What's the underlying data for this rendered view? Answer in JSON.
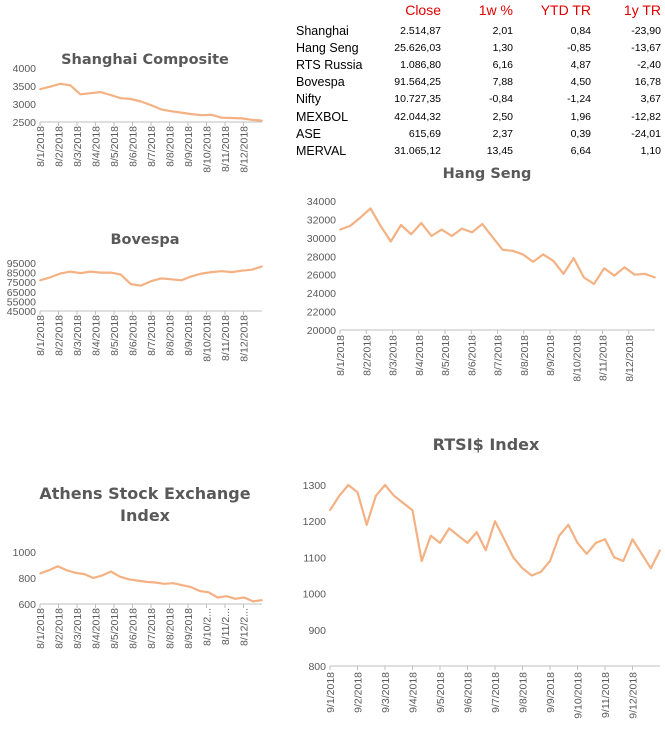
{
  "table": {
    "headers": [
      "",
      "Close",
      "1w %",
      "YTD TR",
      "1y TR"
    ],
    "rows": [
      {
        "name": "Shanghai",
        "close": "2.514,87",
        "w1": "2,01",
        "ytd": "0,84",
        "y1": "-23,90"
      },
      {
        "name": "Hang Seng",
        "close": "25.626,03",
        "w1": "1,30",
        "ytd": "-0,85",
        "y1": "-13,67"
      },
      {
        "name": "RTS Russia",
        "close": "1.086,80",
        "w1": "6,16",
        "ytd": "4,87",
        "y1": "-2,40"
      },
      {
        "name": "Bovespa",
        "close": "91.564,25",
        "w1": "7,88",
        "ytd": "4,50",
        "y1": "16,78"
      },
      {
        "name": "Nifty",
        "close": "10.727,35",
        "w1": "-0,84",
        "ytd": "-1,24",
        "y1": "3,67"
      },
      {
        "name": "MEXBOL",
        "close": "42.044,32",
        "w1": "2,50",
        "ytd": "1,96",
        "y1": "-12,82"
      },
      {
        "name": "ASE",
        "close": "615,69",
        "w1": "2,37",
        "ytd": "0,39",
        "y1": "-24,01"
      },
      {
        "name": "MERVAL",
        "close": "31.065,12",
        "w1": "13,45",
        "ytd": "6,64",
        "y1": "1,10"
      }
    ]
  },
  "line_color": "#f4b183",
  "chart_data": [
    {
      "id": "shanghai",
      "type": "line",
      "title": "Shanghai Composite",
      "yticks": [
        2500,
        3000,
        3500,
        4000
      ],
      "ylim": [
        2500,
        4000
      ],
      "xticks": [
        "8/1/2018",
        "8/2/2018",
        "8/3/2018",
        "8/4/2018",
        "8/5/2018",
        "8/6/2018",
        "8/7/2018",
        "8/8/2018",
        "8/9/2018",
        "8/10/2018",
        "8/11/2018",
        "8/12/2018"
      ],
      "values": [
        3410,
        3480,
        3560,
        3520,
        3270,
        3300,
        3330,
        3250,
        3160,
        3140,
        3070,
        2970,
        2850,
        2800,
        2760,
        2720,
        2690,
        2700,
        2620,
        2610,
        2600,
        2560,
        2540
      ]
    },
    {
      "id": "bovespa",
      "type": "line",
      "title": "Bovespa",
      "yticks": [
        45000,
        55000,
        65000,
        75000,
        85000,
        95000
      ],
      "ylim": [
        45000,
        95000
      ],
      "xticks": [
        "8/1/2018",
        "8/2/2018",
        "8/3/2018",
        "8/4/2018",
        "8/5/2018",
        "8/6/2018",
        "8/7/2018",
        "8/8/2018",
        "8/9/2018",
        "8/10/2018",
        "8/11/2018",
        "8/12/2018"
      ],
      "values": [
        77000,
        80000,
        84000,
        86000,
        84500,
        86000,
        85000,
        85000,
        83000,
        73000,
        71500,
        76000,
        79000,
        78000,
        77000,
        81000,
        84000,
        85500,
        86500,
        85500,
        87000,
        88000,
        91500
      ]
    },
    {
      "id": "hangseng",
      "type": "line",
      "title": "Hang Seng",
      "yticks": [
        20000,
        22000,
        24000,
        26000,
        28000,
        30000,
        32000,
        34000
      ],
      "ylim": [
        20000,
        34000
      ],
      "xticks": [
        "8/1/2018",
        "8/2/2018",
        "8/3/2018",
        "8/4/2018",
        "8/5/2018",
        "8/6/2018",
        "8/7/2018",
        "8/8/2018",
        "8/9/2018",
        "8/10/2018",
        "8/11/2018",
        "8/12/2018"
      ],
      "values": [
        30900,
        31300,
        32200,
        33200,
        31300,
        29600,
        31400,
        30400,
        31600,
        30200,
        30900,
        30200,
        31000,
        30600,
        31500,
        30100,
        28700,
        28600,
        28200,
        27400,
        28200,
        27500,
        26100,
        27800,
        25700,
        25000,
        26700,
        25900,
        26800,
        26000,
        26100,
        25700
      ]
    },
    {
      "id": "ase",
      "type": "line",
      "title": "Athens Stock Exchange Index",
      "title_lines": [
        "Athens Stock Exchange",
        "Index"
      ],
      "yticks": [
        600,
        800,
        1000
      ],
      "ylim": [
        600,
        1000
      ],
      "xticks": [
        "8/1/2018",
        "8/2/2018",
        "8/3/2018",
        "8/4/2018",
        "8/5/2018",
        "8/6/2018",
        "8/7/2018",
        "8/8/2018",
        "8/9/2018",
        "8/10/2...",
        "8/11/2...",
        "8/12/2..."
      ],
      "values": [
        835,
        860,
        890,
        860,
        840,
        830,
        800,
        820,
        850,
        810,
        790,
        780,
        770,
        765,
        755,
        760,
        745,
        730,
        700,
        690,
        650,
        660,
        640,
        650,
        620,
        630
      ]
    },
    {
      "id": "rtsi",
      "type": "line",
      "title": "RTSI$ Index",
      "yticks": [
        800,
        900,
        1000,
        1100,
        1200,
        1300
      ],
      "ylim": [
        800,
        1300
      ],
      "xticks": [
        "9/1/2018",
        "9/2/2018",
        "9/3/2018",
        "9/4/2018",
        "9/5/2018",
        "9/6/2018",
        "9/7/2018",
        "9/8/2018",
        "9/9/2018",
        "9/10/2018",
        "9/11/2018",
        "9/12/2018"
      ],
      "values": [
        1230,
        1270,
        1300,
        1280,
        1190,
        1270,
        1300,
        1270,
        1250,
        1230,
        1090,
        1160,
        1140,
        1180,
        1160,
        1140,
        1170,
        1120,
        1200,
        1150,
        1100,
        1070,
        1050,
        1060,
        1090,
        1160,
        1190,
        1140,
        1110,
        1140,
        1150,
        1100,
        1090,
        1150,
        1110,
        1070,
        1120
      ]
    }
  ]
}
